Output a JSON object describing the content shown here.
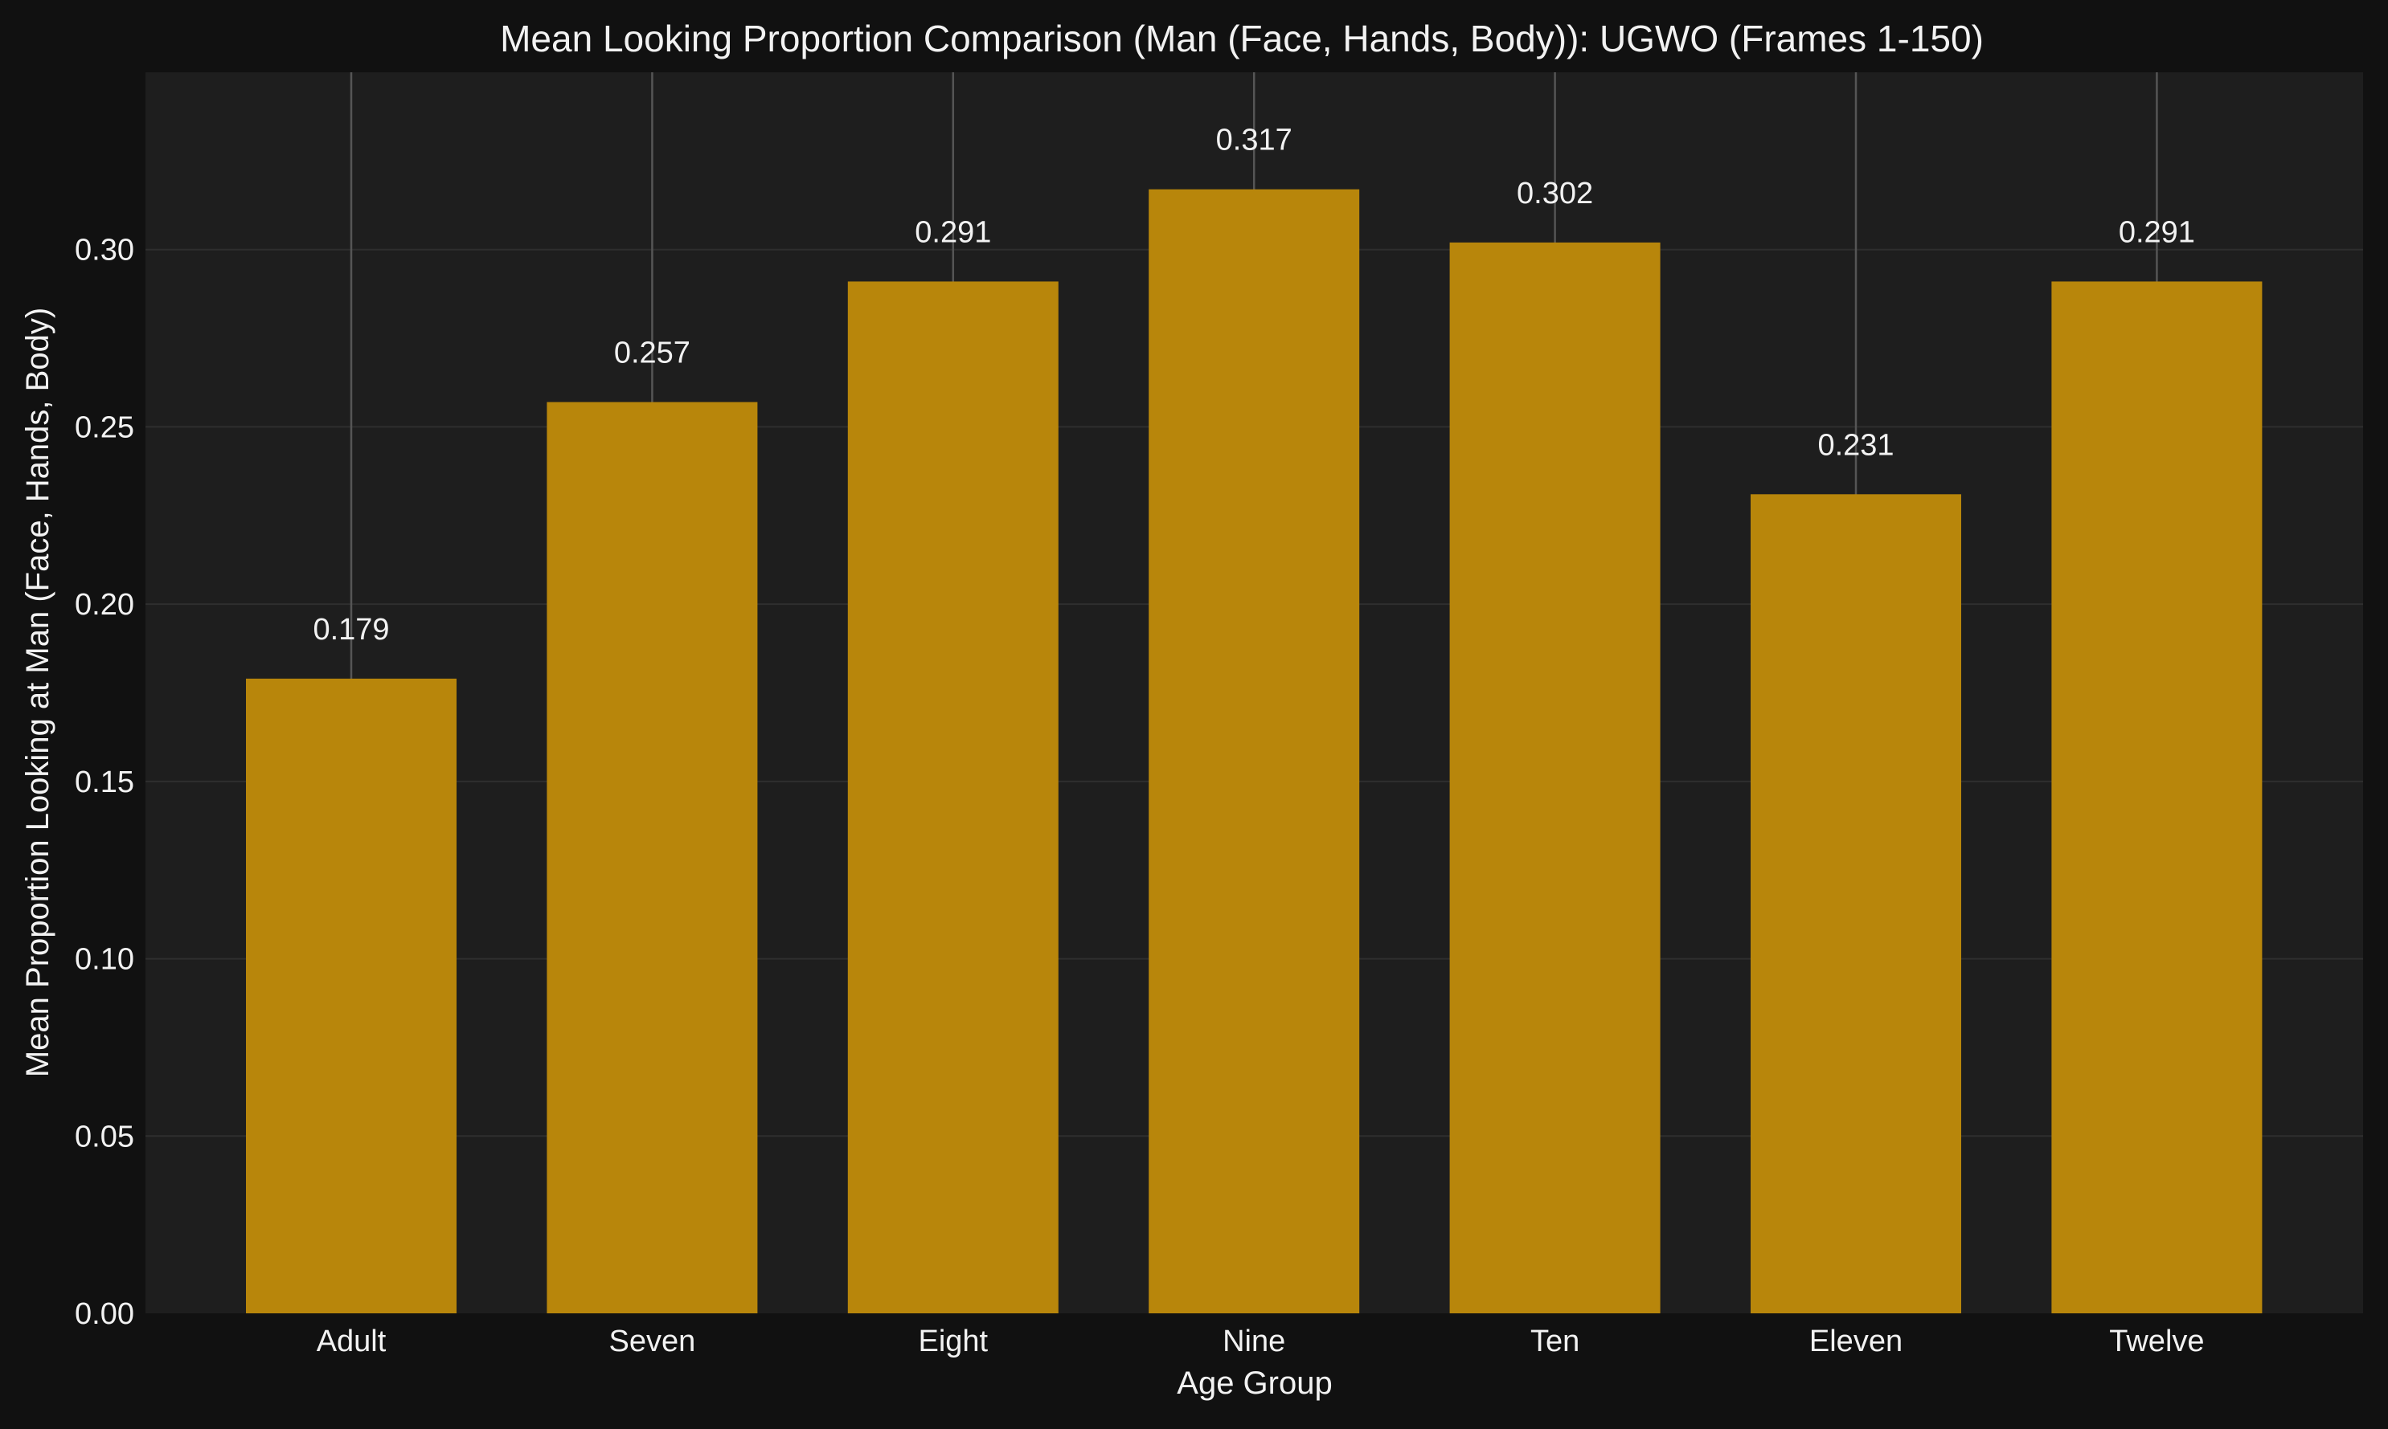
{
  "chart_data": {
    "type": "bar",
    "title": "Mean Looking Proportion Comparison (Man (Face, Hands, Body)): UGWO (Frames 1-150)",
    "xlabel": "Age Group",
    "ylabel": "Mean Proportion Looking at Man (Face, Hands, Body)",
    "categories": [
      "Adult",
      "Seven",
      "Eight",
      "Nine",
      "Ten",
      "Eleven",
      "Twelve"
    ],
    "values": [
      0.179,
      0.257,
      0.291,
      0.317,
      0.302,
      0.231,
      0.291
    ],
    "value_labels": [
      "0.179",
      "0.257",
      "0.291",
      "0.317",
      "0.302",
      "0.231",
      "0.291"
    ],
    "ylim": [
      0,
      0.35
    ],
    "yticks": [
      0.0,
      0.05,
      0.1,
      0.15,
      0.2,
      0.25,
      0.3
    ],
    "ytick_labels": [
      "0.00",
      "0.05",
      "0.10",
      "0.15",
      "0.20",
      "0.25",
      "0.30"
    ],
    "grid": true,
    "colors": {
      "figure_background": "#111111",
      "plot_background": "#1e1e1e",
      "bar": "#b8860b",
      "grid": "#2e2e2e",
      "error_line": "#555555",
      "text": "#f2f2f2"
    }
  }
}
